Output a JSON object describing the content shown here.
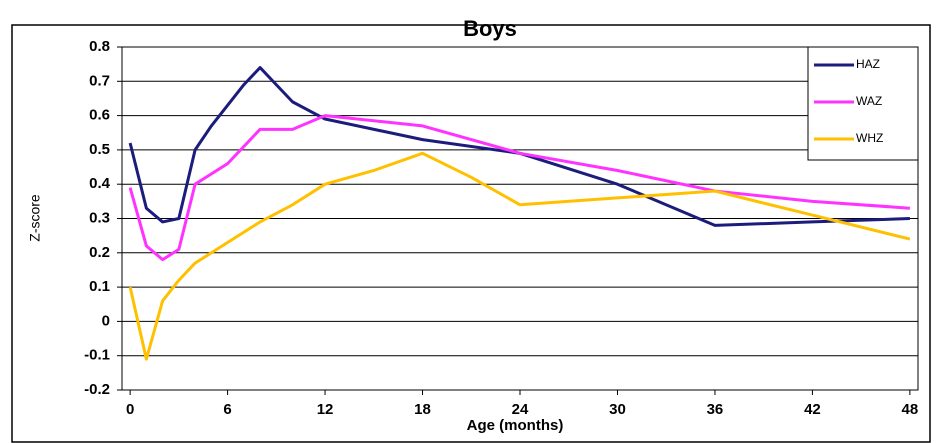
{
  "chart_data": {
    "type": "line",
    "title": "Boys",
    "x_label": "Age (months)",
    "y_label": "Z-score",
    "xlim": [
      -0.5,
      48.5
    ],
    "xticks": [
      0,
      6,
      12,
      18,
      24,
      30,
      36,
      42,
      48
    ],
    "ylim": [
      -0.2,
      0.8
    ],
    "yticks": [
      -0.2,
      -0.1,
      0,
      0.1,
      0.2,
      0.3,
      0.4,
      0.5,
      0.6,
      0.7,
      0.8
    ],
    "grid": true,
    "legend": "upper right",
    "series": [
      {
        "name": "HAZ",
        "color": "#1c1c7c",
        "x": [
          0,
          1,
          2,
          3,
          4,
          5,
          6,
          7,
          8,
          9,
          10,
          12,
          18,
          24,
          30,
          36,
          42,
          48
        ],
        "values": [
          0.52,
          0.33,
          0.29,
          0.3,
          0.5,
          0.57,
          0.63,
          0.69,
          0.74,
          0.69,
          0.64,
          0.59,
          0.53,
          0.49,
          0.4,
          0.28,
          0.29,
          0.3
        ]
      },
      {
        "name": "WAZ",
        "color": "#ff33ff",
        "x": [
          0,
          1,
          2,
          3,
          4,
          6,
          8,
          10,
          12,
          18,
          24,
          30,
          36,
          42,
          48
        ],
        "values": [
          0.39,
          0.22,
          0.18,
          0.21,
          0.4,
          0.46,
          0.56,
          0.56,
          0.6,
          0.57,
          0.49,
          0.44,
          0.38,
          0.35,
          0.33
        ]
      },
      {
        "name": "WHZ",
        "color": "#ffc000",
        "x": [
          0,
          1,
          2,
          3,
          4,
          6,
          8,
          10,
          12,
          15,
          18,
          21,
          24,
          30,
          36,
          42,
          48
        ],
        "values": [
          0.1,
          -0.11,
          0.06,
          0.12,
          0.17,
          0.23,
          0.29,
          0.34,
          0.4,
          0.44,
          0.49,
          0.42,
          0.34,
          0.36,
          0.38,
          0.31,
          0.24
        ]
      }
    ]
  }
}
